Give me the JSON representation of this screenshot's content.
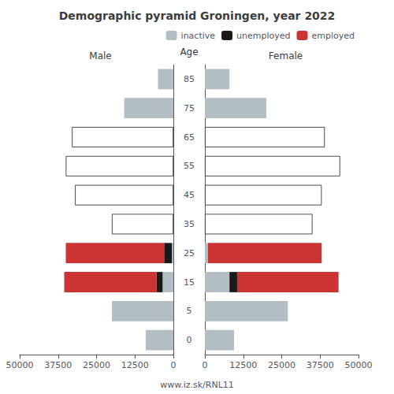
{
  "title": "Demographic pyramid Groningen, year 2022",
  "annotations": [
    "www.iz.sk/RNL11"
  ],
  "chart_data": [
    {
      "type": "bar",
      "title": "Male",
      "orientation": "horizontal",
      "stacked": true,
      "ylabel": "Age",
      "categories": [
        0,
        5,
        15,
        25,
        35,
        45,
        55,
        65,
        75,
        85
      ],
      "xlim": [
        50000,
        0
      ],
      "xticks": [
        0,
        12500,
        25000,
        37500,
        50000
      ],
      "grid": false,
      "series": [
        {
          "name": "inactive",
          "color": "#b2bec3",
          "values": [
            9000,
            20000,
            3500,
            500,
            0,
            0,
            0,
            0,
            16000,
            5000
          ]
        },
        {
          "name": "unemployed",
          "color": "#1a1a1a",
          "values": [
            0,
            0,
            2000,
            2500,
            0,
            0,
            0,
            0,
            0,
            0
          ]
        },
        {
          "name": "employed",
          "color": "#cc3333",
          "colors": [
            "#ffffff",
            "#ffffff",
            "#cc3333",
            "#cc3333",
            "#ffffff",
            "#ffffff",
            "#ffffff",
            "#ffffff",
            "#ffffff",
            "#ffffff"
          ],
          "values": [
            0,
            0,
            30000,
            32000,
            20000,
            32000,
            35000,
            33000,
            0,
            0
          ]
        }
      ]
    },
    {
      "type": "bar",
      "title": "Female",
      "orientation": "horizontal",
      "stacked": true,
      "categories": [
        0,
        5,
        15,
        25,
        35,
        45,
        55,
        65,
        75,
        85
      ],
      "xlim": [
        0,
        50000
      ],
      "xticks": [
        0,
        12500,
        25000,
        37500,
        50000
      ],
      "grid": false,
      "legend": "upper right",
      "tick_labels": "x",
      "series": [
        {
          "name": "inactive",
          "color": "#b2bec3",
          "values": [
            9500,
            27000,
            8000,
            1000,
            0,
            0,
            0,
            0,
            20000,
            8000
          ]
        },
        {
          "name": "unemployed",
          "color": "#1a1a1a",
          "values": [
            0,
            0,
            2500,
            0,
            0,
            0,
            0,
            0,
            0,
            0
          ]
        },
        {
          "name": "employed",
          "color": "#cc3333",
          "colors": [
            "#ffffff",
            "#ffffff",
            "#cc3333",
            "#cc3333",
            "#ffffff",
            "#ffffff",
            "#ffffff",
            "#ffffff",
            "#ffffff",
            "#ffffff"
          ],
          "values": [
            0,
            0,
            33000,
            37000,
            35000,
            38000,
            44000,
            39000,
            0,
            0
          ]
        }
      ]
    }
  ]
}
